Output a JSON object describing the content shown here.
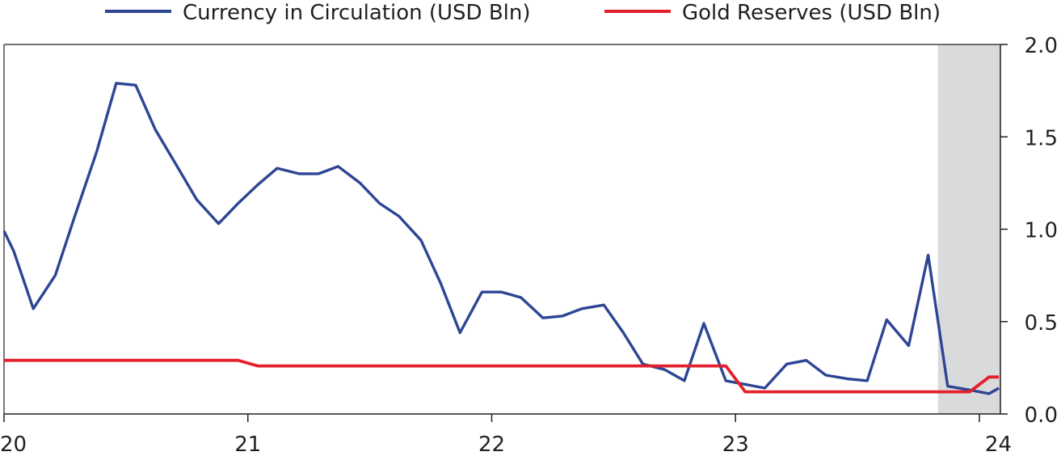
{
  "chart_data": {
    "type": "line",
    "title": "",
    "xlabel": "",
    "ylabel": "",
    "x_ticks": [
      {
        "value": 20,
        "label": "20"
      },
      {
        "value": 21,
        "label": "21"
      },
      {
        "value": 22,
        "label": "22"
      },
      {
        "value": 23,
        "label": "23"
      },
      {
        "value": 24,
        "label": "24"
      }
    ],
    "y_ticks": [
      {
        "value": 0.0,
        "label": "0.0"
      },
      {
        "value": 0.5,
        "label": "0.5"
      },
      {
        "value": 1.0,
        "label": "1.0"
      },
      {
        "value": 1.5,
        "label": "1.5"
      },
      {
        "value": 2.0,
        "label": "2.0"
      }
    ],
    "xlim": [
      20,
      24.08
    ],
    "ylim": [
      0,
      2.0
    ],
    "y_axis_side": "right",
    "legend": "top",
    "shaded_region": {
      "x_start": 23.83,
      "x_end": 24.08,
      "color": "#d9dadc"
    },
    "series": [
      {
        "name": "Currency in Circulation (USD Bln)",
        "color": "#2e4594",
        "points": [
          [
            20.0,
            0.99
          ],
          [
            20.04,
            0.88
          ],
          [
            20.12,
            0.57
          ],
          [
            20.21,
            0.75
          ],
          [
            20.29,
            1.07
          ],
          [
            20.38,
            1.42
          ],
          [
            20.46,
            1.79
          ],
          [
            20.54,
            1.78
          ],
          [
            20.62,
            1.54
          ],
          [
            20.71,
            1.34
          ],
          [
            20.79,
            1.16
          ],
          [
            20.88,
            1.03
          ],
          [
            20.96,
            1.14
          ],
          [
            21.04,
            1.24
          ],
          [
            21.12,
            1.33
          ],
          [
            21.21,
            1.3
          ],
          [
            21.29,
            1.3
          ],
          [
            21.37,
            1.34
          ],
          [
            21.46,
            1.25
          ],
          [
            21.54,
            1.14
          ],
          [
            21.62,
            1.07
          ],
          [
            21.71,
            0.94
          ],
          [
            21.79,
            0.71
          ],
          [
            21.87,
            0.44
          ],
          [
            21.96,
            0.66
          ],
          [
            22.04,
            0.66
          ],
          [
            22.12,
            0.63
          ],
          [
            22.21,
            0.52
          ],
          [
            22.29,
            0.53
          ],
          [
            22.37,
            0.57
          ],
          [
            22.46,
            0.59
          ],
          [
            22.54,
            0.44
          ],
          [
            22.62,
            0.27
          ],
          [
            22.71,
            0.24
          ],
          [
            22.79,
            0.18
          ],
          [
            22.87,
            0.49
          ],
          [
            22.96,
            0.18
          ],
          [
            23.04,
            0.16
          ],
          [
            23.12,
            0.14
          ],
          [
            23.21,
            0.27
          ],
          [
            23.29,
            0.29
          ],
          [
            23.37,
            0.21
          ],
          [
            23.46,
            0.19
          ],
          [
            23.54,
            0.18
          ],
          [
            23.62,
            0.51
          ],
          [
            23.71,
            0.37
          ],
          [
            23.79,
            0.86
          ],
          [
            23.87,
            0.15
          ],
          [
            23.96,
            0.13
          ],
          [
            24.04,
            0.11
          ],
          [
            24.08,
            0.14
          ]
        ]
      },
      {
        "name": "Gold Reserves (USD Bln)",
        "color": "#e3202b",
        "points": [
          [
            20.0,
            0.29
          ],
          [
            20.96,
            0.29
          ],
          [
            21.04,
            0.26
          ],
          [
            22.0,
            0.26
          ],
          [
            22.96,
            0.26
          ],
          [
            23.04,
            0.12
          ],
          [
            23.96,
            0.12
          ],
          [
            24.04,
            0.2
          ],
          [
            24.08,
            0.2
          ]
        ]
      }
    ]
  }
}
